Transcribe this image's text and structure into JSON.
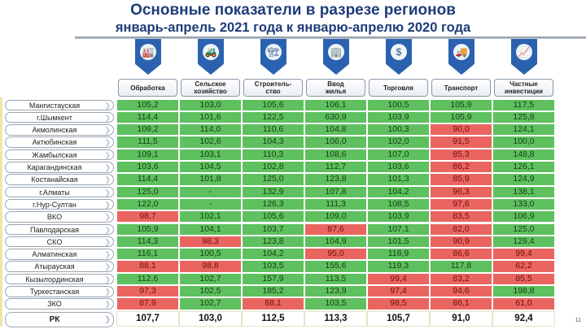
{
  "title": "Основные показатели в разрезе регионов",
  "subtitle": "январь-апрель 2021 года к январю-апрелю 2020 года",
  "colors": {
    "green": "#5ec05e",
    "red": "#ea6560",
    "title": "#1d3c78",
    "shield": "#2b62b0"
  },
  "columns": [
    {
      "label": "Обработка",
      "icon": "factory-icon",
      "glyph": "🏭"
    },
    {
      "label": "Сельское\nхозяйство",
      "icon": "tractor-icon",
      "glyph": "🚜"
    },
    {
      "label": "Строитель-\nство",
      "icon": "crane-icon",
      "glyph": "🏗"
    },
    {
      "label": "Ввод\nжилья",
      "icon": "building-icon",
      "glyph": "🏢"
    },
    {
      "label": "Торговля",
      "icon": "money-exchange-icon",
      "glyph": "$"
    },
    {
      "label": "Транспорт",
      "icon": "truck-icon",
      "glyph": "🚚"
    },
    {
      "label": "Частные\nинвестиции",
      "icon": "investment-icon",
      "glyph": "📈"
    }
  ],
  "rows": [
    {
      "region": "Мангистауская",
      "values": [
        "105,2",
        "103,0",
        "105,6",
        "106,1",
        "100,5",
        "105,9",
        "117,5"
      ],
      "status": [
        "g",
        "g",
        "g",
        "g",
        "g",
        "g",
        "g"
      ]
    },
    {
      "region": "г.Шымкент",
      "values": [
        "114,4",
        "101,6",
        "122,5",
        "630,9",
        "103,9",
        "105,9",
        "125,8"
      ],
      "status": [
        "g",
        "g",
        "g",
        "g",
        "g",
        "g",
        "g"
      ]
    },
    {
      "region": "Акмолинская",
      "values": [
        "109,2",
        "114,0",
        "110,6",
        "104,8",
        "100,3",
        "90,0",
        "124,1"
      ],
      "status": [
        "g",
        "g",
        "g",
        "g",
        "g",
        "r",
        "g"
      ]
    },
    {
      "region": "Актюбинская",
      "values": [
        "111,5",
        "102,6",
        "104,3",
        "106,0",
        "102,0",
        "91,5",
        "100,0"
      ],
      "status": [
        "g",
        "g",
        "g",
        "g",
        "g",
        "r",
        "g"
      ]
    },
    {
      "region": "Жамбылская",
      "values": [
        "109,1",
        "103,1",
        "110,3",
        "108,6",
        "107,0",
        "85,3",
        "148,8"
      ],
      "status": [
        "g",
        "g",
        "g",
        "g",
        "g",
        "r",
        "g"
      ]
    },
    {
      "region": "Карагандинская",
      "values": [
        "103,6",
        "104,5",
        "102,8",
        "112,7",
        "103,6",
        "86,2",
        "126,1"
      ],
      "status": [
        "g",
        "g",
        "g",
        "g",
        "g",
        "r",
        "g"
      ]
    },
    {
      "region": "Костанайская",
      "values": [
        "114,4",
        "101,8",
        "125,0",
        "123,8",
        "101,3",
        "85,9",
        "124,9"
      ],
      "status": [
        "g",
        "g",
        "g",
        "g",
        "g",
        "r",
        "g"
      ]
    },
    {
      "region": "г.Алматы",
      "values": [
        "125,0",
        "-",
        "132,9",
        "107,8",
        "104,2",
        "96,3",
        "138,1"
      ],
      "status": [
        "g",
        "g",
        "g",
        "g",
        "g",
        "r",
        "g"
      ]
    },
    {
      "region": "г.Нур-Султан",
      "values": [
        "122,0",
        "-",
        "126,3",
        "111,3",
        "108,5",
        "97,6",
        "133,0"
      ],
      "status": [
        "g",
        "g",
        "g",
        "g",
        "g",
        "r",
        "g"
      ]
    },
    {
      "region": "ВКО",
      "values": [
        "98,7",
        "102,1",
        "105,6",
        "109,0",
        "103,9",
        "83,5",
        "106,9"
      ],
      "status": [
        "r",
        "g",
        "g",
        "g",
        "g",
        "r",
        "g"
      ]
    },
    {
      "region": "Павлодарская",
      "values": [
        "105,9",
        "104,1",
        "103,7",
        "87,6",
        "107,1",
        "82,0",
        "125,0"
      ],
      "status": [
        "g",
        "g",
        "g",
        "r",
        "g",
        "r",
        "g"
      ]
    },
    {
      "region": "СКО",
      "values": [
        "114,3",
        "98,3",
        "123,8",
        "104,9",
        "101,5",
        "90,9",
        "129,4"
      ],
      "status": [
        "g",
        "r",
        "g",
        "g",
        "g",
        "r",
        "g"
      ]
    },
    {
      "region": "Алматинская",
      "values": [
        "116,1",
        "100,5",
        "104,2",
        "95,0",
        "118,9",
        "86,6",
        "99,4"
      ],
      "status": [
        "g",
        "g",
        "g",
        "r",
        "g",
        "r",
        "r"
      ]
    },
    {
      "region": "Атырауская",
      "values": [
        "88,1",
        "98,8",
        "103,5",
        "155,6",
        "119,3",
        "117,8",
        "62,2"
      ],
      "status": [
        "r",
        "r",
        "g",
        "g",
        "g",
        "g",
        "r"
      ]
    },
    {
      "region": "Кызылординская",
      "values": [
        "112,6",
        "102,7",
        "157,9",
        "113,5",
        "99,4",
        "83,2",
        "85,5"
      ],
      "status": [
        "g",
        "g",
        "g",
        "g",
        "r",
        "r",
        "r"
      ]
    },
    {
      "region": "Туркестанская",
      "values": [
        "97,3",
        "102,5",
        "185,2",
        "123,9",
        "97,4",
        "94,6",
        "198,8"
      ],
      "status": [
        "r",
        "g",
        "g",
        "g",
        "r",
        "r",
        "g"
      ]
    },
    {
      "region": "ЗКО",
      "values": [
        "87,9",
        "102,7",
        "88,1",
        "103,5",
        "98,5",
        "86,1",
        "61,0"
      ],
      "status": [
        "r",
        "g",
        "r",
        "g",
        "r",
        "r",
        "r"
      ]
    }
  ],
  "total": {
    "region": "РК",
    "values": [
      "107,7",
      "103,0",
      "112,5",
      "113,3",
      "105,7",
      "91,0",
      "92,4"
    ]
  },
  "page_number": "11"
}
